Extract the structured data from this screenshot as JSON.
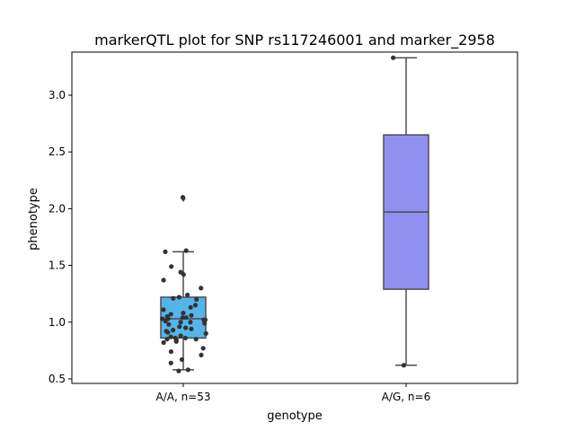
{
  "chart_data": {
    "type": "box",
    "title": "markerQTL plot for SNP rs117246001 and marker_2958",
    "xlabel": "genotype",
    "ylabel": "phenotype",
    "ylim": [
      0.46,
      3.38
    ],
    "yticks": [
      0.5,
      1.0,
      1.5,
      2.0,
      2.5,
      3.0
    ],
    "ytick_labels": [
      "0.5",
      "1.0",
      "1.5",
      "2.0",
      "2.5",
      "3.0"
    ],
    "categories": [
      "A/A, n=53",
      "A/G, n=6"
    ],
    "boxes": [
      {
        "category": "A/A, n=53",
        "color": "#56b4e9",
        "whisker_low": 0.58,
        "q1": 0.86,
        "median": 1.03,
        "q3": 1.22,
        "whisker_high": 1.62,
        "outliers": [
          2.09
        ]
      },
      {
        "category": "A/G, n=6",
        "color": "#9090f0",
        "whisker_low": 0.62,
        "q1": 1.29,
        "median": 1.97,
        "q3": 2.65,
        "whisker_high": 3.33,
        "outliers": []
      }
    ],
    "points": [
      {
        "category": "A/A, n=53",
        "values": [
          2.1,
          1.63,
          1.62,
          1.49,
          1.44,
          1.42,
          1.37,
          1.3,
          1.24,
          1.22,
          1.21,
          1.2,
          1.13,
          1.11,
          1.08,
          1.07,
          1.06,
          1.05,
          1.04,
          1.04,
          1.03,
          1.03,
          1.02,
          1.02,
          1.01,
          1.0,
          0.99,
          0.98,
          0.96,
          0.95,
          0.94,
          0.93,
          0.91,
          0.9,
          0.88,
          0.87,
          0.86,
          0.86,
          0.85,
          0.85,
          0.84,
          0.83,
          0.82,
          0.77,
          0.74,
          0.71,
          0.67,
          0.64,
          0.58,
          0.57,
          1.15,
          1.0,
          0.92
        ]
      },
      {
        "category": "A/G, n=6",
        "values": [
          3.33,
          0.62
        ]
      }
    ]
  }
}
